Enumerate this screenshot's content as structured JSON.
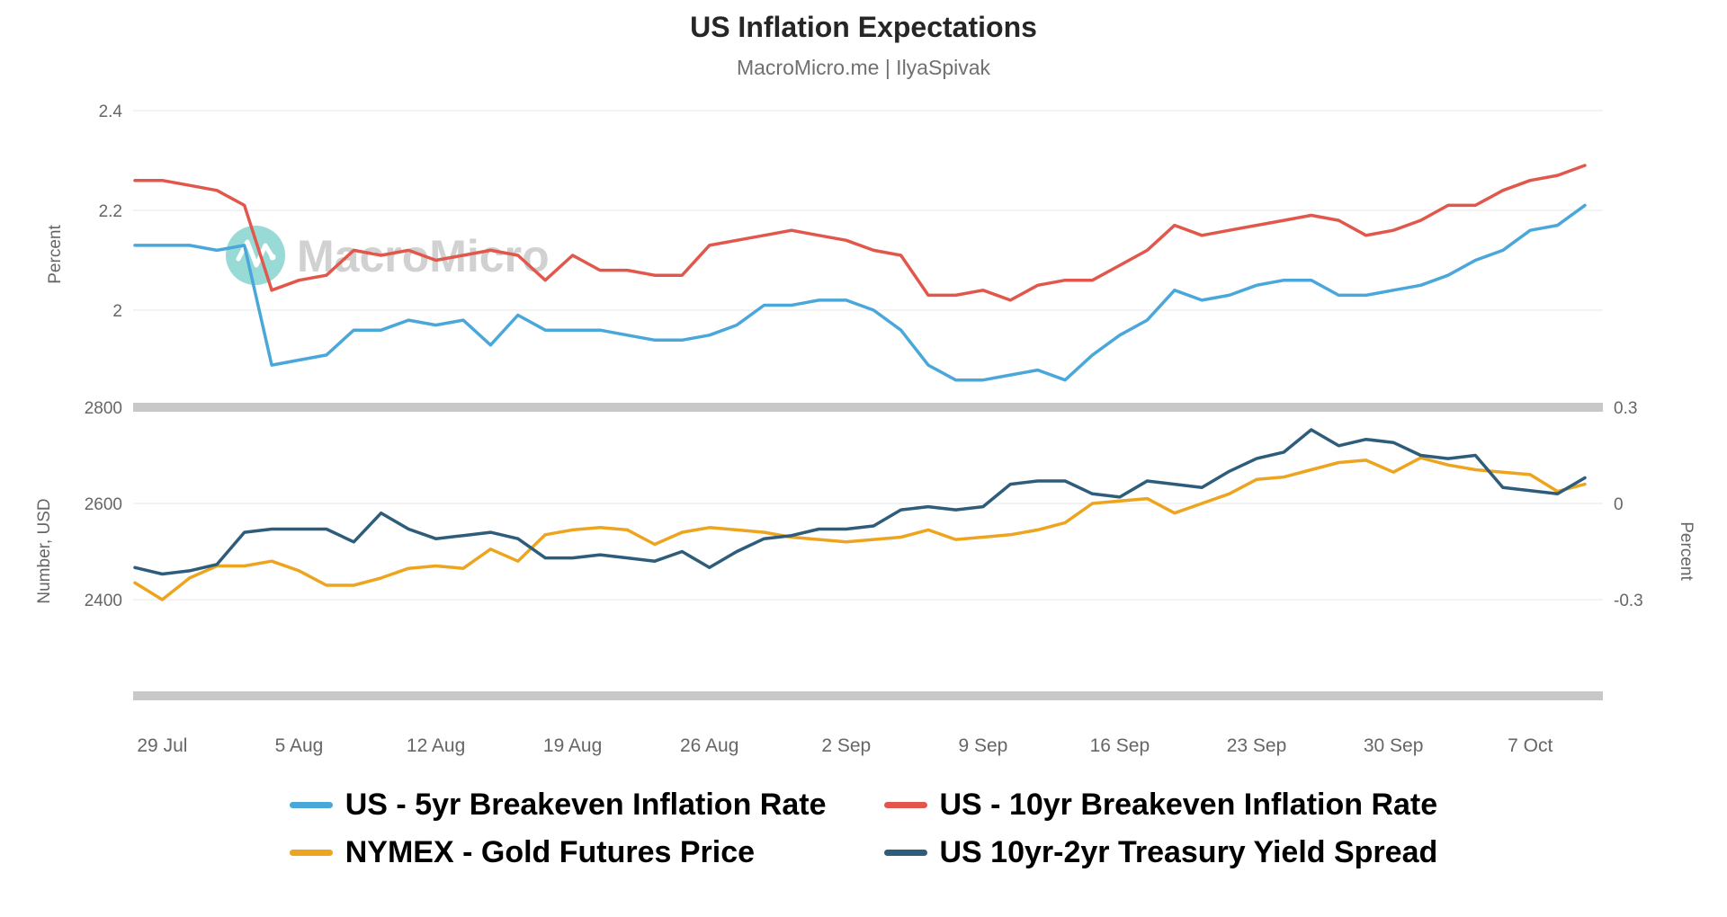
{
  "header": {
    "title": "US Inflation Expectations",
    "subtitle": "MacroMicro.me | IlyaSpivak"
  },
  "watermark": {
    "text": "MacroMicro"
  },
  "chart_data": {
    "type": "line",
    "x": [
      "26 Jul",
      "29 Jul",
      "30 Jul",
      "31 Jul",
      "1 Aug",
      "2 Aug",
      "5 Aug",
      "6 Aug",
      "7 Aug",
      "8 Aug",
      "9 Aug",
      "12 Aug",
      "13 Aug",
      "14 Aug",
      "15 Aug",
      "16 Aug",
      "19 Aug",
      "20 Aug",
      "21 Aug",
      "22 Aug",
      "23 Aug",
      "26 Aug",
      "27 Aug",
      "28 Aug",
      "29 Aug",
      "30 Aug",
      "2 Sep",
      "3 Sep",
      "4 Sep",
      "5 Sep",
      "6 Sep",
      "9 Sep",
      "10 Sep",
      "11 Sep",
      "12 Sep",
      "13 Sep",
      "16 Sep",
      "17 Sep",
      "18 Sep",
      "19 Sep",
      "20 Sep",
      "23 Sep",
      "24 Sep",
      "25 Sep",
      "26 Sep",
      "27 Sep",
      "30 Sep",
      "1 Oct",
      "2 Oct",
      "3 Oct",
      "4 Oct",
      "7 Oct",
      "8 Oct",
      "9 Oct"
    ],
    "x_tick_labels": [
      "29 Jul",
      "5 Aug",
      "12 Aug",
      "19 Aug",
      "26 Aug",
      "2 Sep",
      "9 Sep",
      "16 Sep",
      "23 Sep",
      "30 Sep",
      "7 Oct"
    ],
    "grid": true,
    "legend_position": "bottom",
    "panels": [
      {
        "name": "breakeven-inflation-panel",
        "axis_left": {
          "label": "Percent",
          "ticks": [
            "2.4",
            "2.2",
            "2"
          ],
          "tick_values": [
            2.4,
            2.2,
            2.0
          ],
          "range": [
            1.83,
            2.44
          ]
        },
        "series": [
          {
            "name": "US - 5yr Breakeven Inflation Rate",
            "color": "#4aa7d9",
            "values": [
              2.13,
              2.13,
              2.13,
              2.12,
              2.13,
              1.89,
              1.9,
              1.91,
              1.96,
              1.96,
              1.98,
              1.97,
              1.98,
              1.93,
              1.99,
              1.96,
              1.96,
              1.96,
              1.95,
              1.94,
              1.94,
              1.95,
              1.97,
              2.01,
              2.01,
              2.02,
              2.02,
              2.0,
              1.96,
              1.89,
              1.86,
              1.86,
              1.87,
              1.88,
              1.86,
              1.91,
              1.95,
              1.98,
              2.04,
              2.02,
              2.03,
              2.05,
              2.06,
              2.06,
              2.03,
              2.03,
              2.04,
              2.05,
              2.07,
              2.1,
              2.12,
              2.16,
              2.17,
              2.21
            ]
          },
          {
            "name": "US - 10yr Breakeven Inflation Rate",
            "color": "#e2574c",
            "values": [
              2.26,
              2.26,
              2.25,
              2.24,
              2.21,
              2.04,
              2.06,
              2.07,
              2.12,
              2.11,
              2.12,
              2.1,
              2.11,
              2.12,
              2.11,
              2.06,
              2.11,
              2.08,
              2.08,
              2.07,
              2.07,
              2.13,
              2.14,
              2.15,
              2.16,
              2.15,
              2.14,
              2.12,
              2.11,
              2.03,
              2.03,
              2.04,
              2.02,
              2.05,
              2.06,
              2.06,
              2.09,
              2.12,
              2.17,
              2.15,
              2.16,
              2.17,
              2.18,
              2.19,
              2.18,
              2.15,
              2.16,
              2.18,
              2.21,
              2.21,
              2.24,
              2.26,
              2.27,
              2.29
            ]
          }
        ]
      },
      {
        "name": "gold-and-yield-spread-panel",
        "axis_left": {
          "label": "Number, USD",
          "ticks": [
            "2800",
            "2600",
            "2400"
          ],
          "tick_values": [
            2800,
            2600,
            2400
          ],
          "range": [
            2190,
            2800
          ]
        },
        "axis_right": {
          "label": "Percent",
          "ticks": [
            "0.3",
            "0",
            "-0.3"
          ],
          "tick_values": [
            0.3,
            0,
            -0.3
          ],
          "range": [
            -0.6,
            0.3
          ]
        },
        "series": [
          {
            "name": "NYMEX - Gold Futures Price",
            "axis": "left",
            "color": "#eda41f",
            "values": [
              2435,
              2400,
              2445,
              2470,
              2470,
              2480,
              2460,
              2430,
              2430,
              2445,
              2465,
              2470,
              2465,
              2505,
              2480,
              2535,
              2545,
              2550,
              2545,
              2515,
              2540,
              2550,
              2545,
              2540,
              2530,
              2525,
              2520,
              2525,
              2530,
              2545,
              2525,
              2530,
              2535,
              2545,
              2560,
              2600,
              2605,
              2610,
              2580,
              2600,
              2620,
              2650,
              2655,
              2670,
              2685,
              2690,
              2665,
              2695,
              2680,
              2670,
              2665,
              2660,
              2625,
              2640
            ]
          },
          {
            "name": "US 10yr-2yr Treasury Yield Spread",
            "axis": "right",
            "color": "#2e5c7b",
            "values": [
              -0.2,
              -0.22,
              -0.21,
              -0.19,
              -0.09,
              -0.08,
              -0.08,
              -0.08,
              -0.12,
              -0.03,
              -0.08,
              -0.11,
              -0.1,
              -0.09,
              -0.11,
              -0.17,
              -0.17,
              -0.16,
              -0.17,
              -0.18,
              -0.15,
              -0.2,
              -0.15,
              -0.11,
              -0.1,
              -0.08,
              -0.08,
              -0.07,
              -0.02,
              -0.01,
              -0.02,
              -0.01,
              0.06,
              0.07,
              0.07,
              0.03,
              0.02,
              0.07,
              0.06,
              0.05,
              0.1,
              0.14,
              0.16,
              0.23,
              0.18,
              0.2,
              0.19,
              0.15,
              0.14,
              0.15,
              0.05,
              0.04,
              0.03,
              0.08
            ]
          }
        ]
      }
    ]
  },
  "legend": {
    "items": [
      {
        "label": "US - 5yr Breakeven Inflation Rate",
        "color": "#4aa7d9"
      },
      {
        "label": "US - 10yr Breakeven Inflation Rate",
        "color": "#e2574c"
      },
      {
        "label": "NYMEX - Gold Futures Price",
        "color": "#eda41f"
      },
      {
        "label": "US 10yr-2yr Treasury Yield Spread",
        "color": "#2e5c7b"
      }
    ]
  }
}
